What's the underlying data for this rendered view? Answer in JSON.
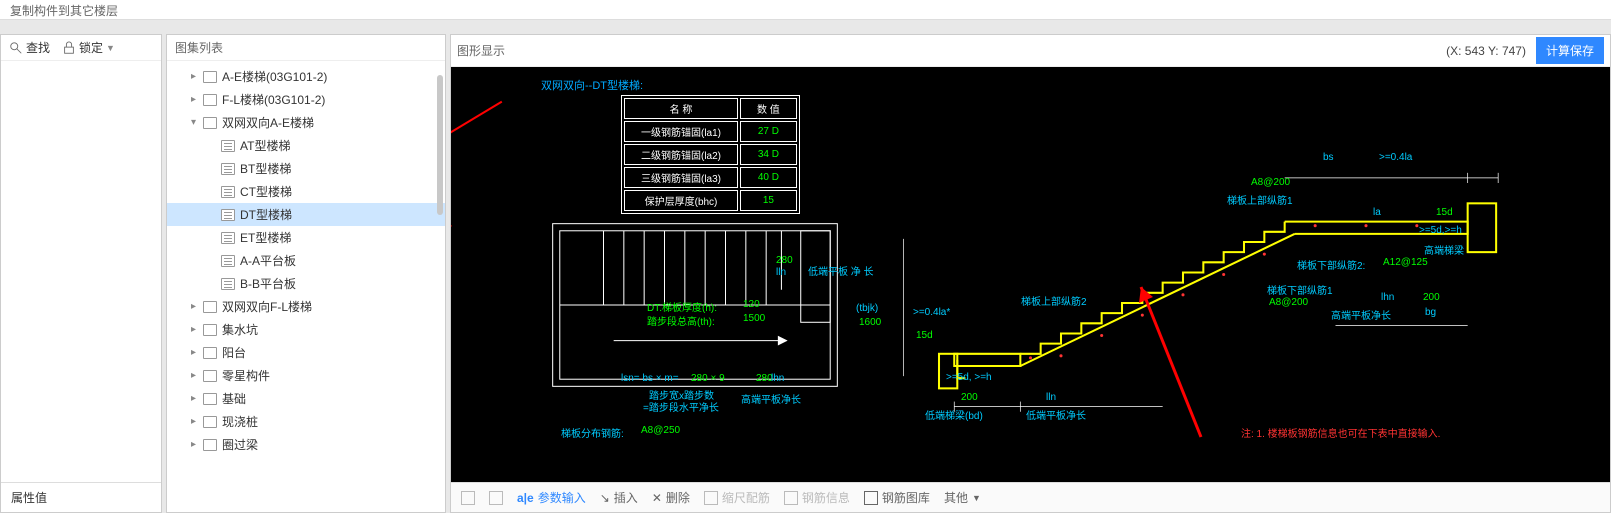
{
  "title": "复制构件到其它楼层",
  "left_toolbar": {
    "find": "查找",
    "lock": "锁定"
  },
  "prop_header": "属性值",
  "tree": {
    "title": "图集列表",
    "items": [
      {
        "level": 1,
        "type": "folder",
        "expand": "▸",
        "label": "A-E楼梯(03G101-2)"
      },
      {
        "level": 1,
        "type": "folder",
        "expand": "▸",
        "label": "F-L楼梯(03G101-2)"
      },
      {
        "level": 1,
        "type": "folder",
        "expand": "▾",
        "label": "双网双向A-E楼梯"
      },
      {
        "level": 2,
        "type": "doc",
        "label": "AT型楼梯"
      },
      {
        "level": 2,
        "type": "doc",
        "label": "BT型楼梯"
      },
      {
        "level": 2,
        "type": "doc",
        "label": "CT型楼梯"
      },
      {
        "level": 2,
        "type": "doc",
        "label": "DT型楼梯",
        "selected": true
      },
      {
        "level": 2,
        "type": "doc",
        "label": "ET型楼梯"
      },
      {
        "level": 2,
        "type": "doc",
        "label": "A-A平台板"
      },
      {
        "level": 2,
        "type": "doc",
        "label": "B-B平台板"
      },
      {
        "level": 1,
        "type": "folder",
        "expand": "▸",
        "label": "双网双向F-L楼梯"
      },
      {
        "level": 1,
        "type": "folder",
        "expand": "▸",
        "label": "集水坑"
      },
      {
        "level": 1,
        "type": "folder",
        "expand": "▸",
        "label": "阳台"
      },
      {
        "level": 1,
        "type": "folder",
        "expand": "▸",
        "label": "零星构件"
      },
      {
        "level": 1,
        "type": "folder",
        "expand": "▸",
        "label": "基础"
      },
      {
        "level": 1,
        "type": "folder",
        "expand": "▸",
        "label": "现浇桩"
      },
      {
        "level": 1,
        "type": "folder",
        "expand": "▸",
        "label": "圈过梁"
      }
    ]
  },
  "right": {
    "title": "图形显示",
    "coords": "(X: 543 Y: 747)",
    "calc": "计算保存"
  },
  "diagram": {
    "caption": "双网双向--DT型楼梯:",
    "table": {
      "header": [
        "名 称",
        "数 值"
      ],
      "rows": [
        [
          "一级钢筋锚固(la1)",
          "27 D"
        ],
        [
          "二级钢筋锚固(la2)",
          "34 D"
        ],
        [
          "三级钢筋锚固(la3)",
          "40 D"
        ],
        [
          "保护层厚度(bhc)",
          "15"
        ]
      ]
    },
    "plan_labels": {
      "h_label": "DT.梯板厚度(h):",
      "h_val": "120",
      "th_label": "踏步段总高(th):",
      "th_val": "1500",
      "v280": "280",
      "lln": "lln",
      "formula_a": "lsn= bs × m=",
      "formula_b": "280 × 9",
      "formula_c": "280",
      "subA": "踏步宽x踏步数",
      "subB": "=踏步段水平净长",
      "subC": "高端平板净长",
      "lhn": "lhn",
      "low_plate": "低端平板\n净 长",
      "tbjk": "(tbjk)",
      "tbjk_v": "1600",
      "dist_bar": "梯板分布钢筋:",
      "dist_bar_v": "A8@250"
    },
    "stair_labels": {
      "bs": "bs",
      "g04la": ">=0.4la",
      "top1": "梯板上部纵筋1",
      "a8_1": "A8@200",
      "la": "la",
      "d15": "15d",
      "d5h": ">=5d,>=h",
      "high_beam": "高端梯梁",
      "bot2": "梯板下部纵筋2:",
      "bot2v": "A12@125",
      "bot1": "梯板下部纵筋1",
      "a8_2": "A8@200",
      "high_plate": "高端平板净长",
      "lhn": "lhn",
      "v200": "200",
      "bg": "bg",
      "top2": "梯板上部纵筋2",
      "g04la2": ">=0.4la*",
      "d15b": "15d",
      "d5hb": ">=5d, >=h",
      "low_beam": "低端梯梁(bd)",
      "low_plate": "低端平板净长",
      "lln": "lln",
      "v200b": "200"
    },
    "note": "注:  1. 楼梯板钢筋信息也可在下表中直接输入."
  },
  "bottom": {
    "param": "参数输入",
    "insert": "插入",
    "delete": "删除",
    "scale": "缩尺配筋",
    "rebar": "钢筋信息",
    "library": "钢筋图库",
    "other": "其他"
  },
  "colors": {
    "accent": "#2f88ff",
    "canvas": "#000000",
    "green": "#00ff00",
    "cyan": "#00ccff",
    "white": "#ffffff",
    "yellow": "#ffff00",
    "red": "#ff3333"
  }
}
